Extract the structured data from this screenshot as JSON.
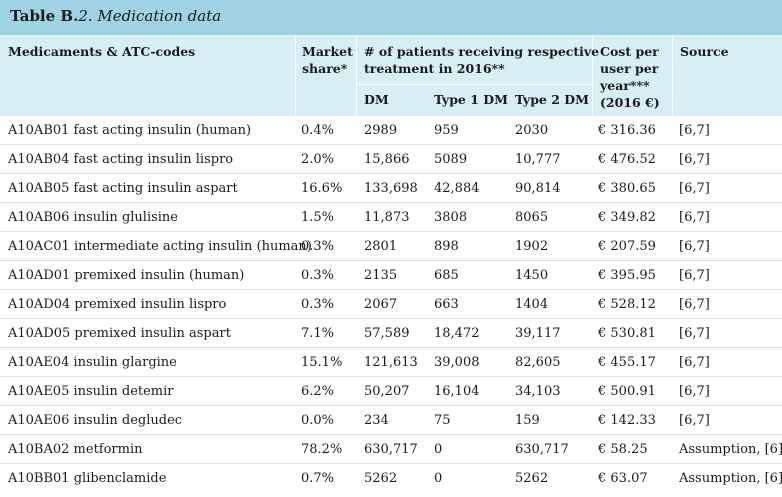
{
  "caption": {
    "label": "Table B.",
    "number_title": "2. Medication data"
  },
  "headers": {
    "medicaments": "Medicaments & ATC-codes",
    "share_l1": "Market",
    "share_l2": "share*",
    "patients_l1": "# of patients receiving respective",
    "patients_l2": "treatment in 2016**",
    "dm": "DM",
    "type1": "Type 1 DM",
    "type2": "Type 2 DM",
    "cost_l1": "Cost per",
    "cost_l2": "user per",
    "cost_l3": "year***",
    "cost_l4": "(2016 €)",
    "source": "Source"
  },
  "rows": [
    {
      "med": "A10AB01 fast acting insulin (human)",
      "share": "0.4%",
      "dm": "2989",
      "t1": "959",
      "t2": "2030",
      "cost": "€ 316.36",
      "src": "[6,7]"
    },
    {
      "med": "A10AB04 fast acting insulin lispro",
      "share": "2.0%",
      "dm": "15,866",
      "t1": "5089",
      "t2": "10,777",
      "cost": "€ 476.52",
      "src": "[6,7]"
    },
    {
      "med": "A10AB05 fast acting insulin aspart",
      "share": "16.6%",
      "dm": "133,698",
      "t1": "42,884",
      "t2": "90,814",
      "cost": "€ 380.65",
      "src": "[6,7]"
    },
    {
      "med": "A10AB06 insulin glulisine",
      "share": "1.5%",
      "dm": "11,873",
      "t1": "3808",
      "t2": "8065",
      "cost": "€ 349.82",
      "src": "[6,7]"
    },
    {
      "med": "A10AC01 intermediate acting insulin (human)",
      "share": "0.3%",
      "dm": "2801",
      "t1": "898",
      "t2": "1902",
      "cost": "€ 207.59",
      "src": "[6,7]"
    },
    {
      "med": "A10AD01 premixed insulin (human)",
      "share": "0.3%",
      "dm": "2135",
      "t1": "685",
      "t2": "1450",
      "cost": "€ 395.95",
      "src": "[6,7]"
    },
    {
      "med": "A10AD04 premixed insulin lispro",
      "share": "0.3%",
      "dm": "2067",
      "t1": "663",
      "t2": "1404",
      "cost": "€ 528.12",
      "src": "[6,7]"
    },
    {
      "med": "A10AD05 premixed insulin aspart",
      "share": "7.1%",
      "dm": "57,589",
      "t1": "18,472",
      "t2": "39,117",
      "cost": "€ 530.81",
      "src": "[6,7]"
    },
    {
      "med": "A10AE04 insulin glargine",
      "share": "15.1%",
      "dm": "121,613",
      "t1": "39,008",
      "t2": "82,605",
      "cost": "€ 455.17",
      "src": "[6,7]"
    },
    {
      "med": "A10AE05 insulin detemir",
      "share": "6.2%",
      "dm": "50,207",
      "t1": "16,104",
      "t2": "34,103",
      "cost": "€ 500.91",
      "src": "[6,7]"
    },
    {
      "med": "A10AE06 insulin degludec",
      "share": "0.0%",
      "dm": "234",
      "t1": "75",
      "t2": "159",
      "cost": "€ 142.33",
      "src": "[6,7]"
    },
    {
      "med": "A10BA02 metformin",
      "share": "78.2%",
      "dm": "630,717",
      "t1": "0",
      "t2": "630,717",
      "cost": "€ 58.25",
      "src": "Assumption, [6]"
    },
    {
      "med": "A10BB01 glibenclamide",
      "share": "0.7%",
      "dm": "5262",
      "t1": "0",
      "t2": "5262",
      "cost": "€ 63.07",
      "src": "Assumption, [6]"
    }
  ]
}
